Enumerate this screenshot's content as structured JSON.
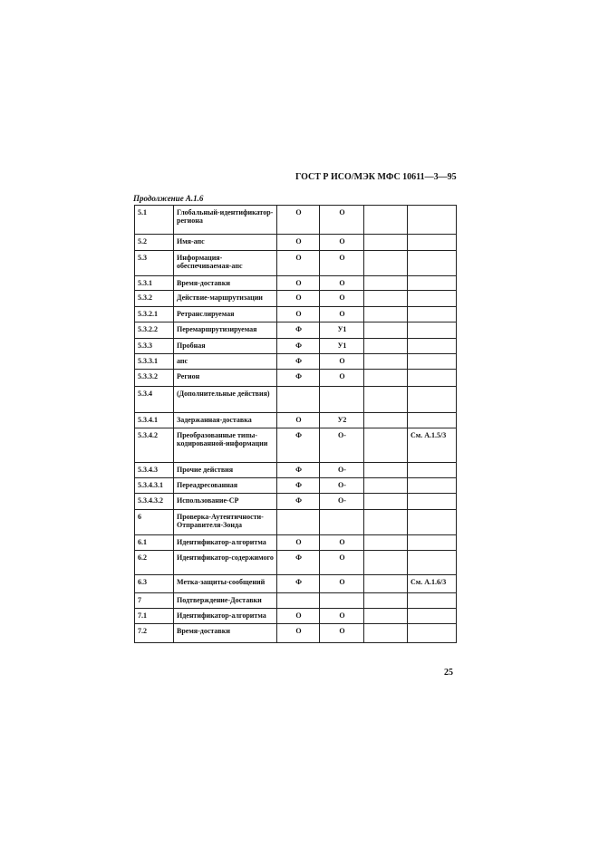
{
  "header": {
    "title": "ГОСТ Р ИСО/МЭК МФС 10611—3—95",
    "caption": "Продолжение А.1.6"
  },
  "table": {
    "rows": [
      {
        "n": "5.1",
        "name": "Глобальный-идентификатор-региона",
        "a": "О",
        "b": "О"
      },
      {
        "n": "5.2",
        "name": "Имя-апс",
        "a": "О",
        "b": "О"
      },
      {
        "n": "5.3",
        "name": "Информация-обеспечиваемая-апс",
        "a": "О",
        "b": "О"
      },
      {
        "n": "5.3.1",
        "name": "Время-доставки",
        "a": "О",
        "b": "О"
      },
      {
        "n": "5.3.2",
        "name": "Действие-маршрутизации",
        "a": "О",
        "b": "О"
      },
      {
        "n": "5.3.2.1",
        "name": "Ретранслируемая",
        "a": "О",
        "b": "О"
      },
      {
        "n": "5.3.2.2",
        "name": "Перемаршрутизируемая",
        "a": "Ф",
        "b": "У1"
      },
      {
        "n": "5.3.3",
        "name": "Пробная",
        "a": "Ф",
        "b": "У1"
      },
      {
        "n": "5.3.3.1",
        "name": "апс",
        "a": "Ф",
        "b": "О"
      },
      {
        "n": "5.3.3.2",
        "name": "Регион",
        "a": "Ф",
        "b": "О"
      },
      {
        "n": "5.3.4",
        "name": "(Дополнительные действия)"
      },
      {
        "n": "5.3.4.1",
        "name": "Задержанная-доставка",
        "a": "О",
        "b": "У2"
      },
      {
        "n": "5.3.4.2",
        "name": "Преобразованные типы-кодированной-информации",
        "a": "Ф",
        "b": "О-",
        "note": "См. А.1.5/3"
      },
      {
        "n": "5.3.4.3",
        "name": "Прочие действия",
        "a": "Ф",
        "b": "О-"
      },
      {
        "n": "5.3.4.3.1",
        "name": "Переадресованная",
        "a": "Ф",
        "b": "О-"
      },
      {
        "n": "5.3.4.3.2",
        "name": "Использование-СР",
        "a": "Ф",
        "b": "О-"
      },
      {
        "n": "6",
        "name": "Проверка-Аутентичности-Отправителя-Зонда"
      },
      {
        "n": "6.1",
        "name": "Идентификатор-алгоритма",
        "a": "О",
        "b": "О"
      },
      {
        "n": "6.2",
        "name": "Идентификатор-содержимого",
        "a": "Ф",
        "b": "О"
      },
      {
        "n": "6.3",
        "name": "Метка-защиты-сообщений",
        "a": "Ф",
        "b": "О",
        "note": "См. А.1.6/3"
      },
      {
        "n": "7",
        "name": "Подтверждение-Доставки"
      },
      {
        "n": "7.1",
        "name": "Идентификатор-алгоритма",
        "a": "О",
        "b": "О"
      },
      {
        "n": "7.2",
        "name": "Время-доставки",
        "a": "О",
        "b": "О"
      }
    ]
  },
  "footer": {
    "page": "25"
  }
}
